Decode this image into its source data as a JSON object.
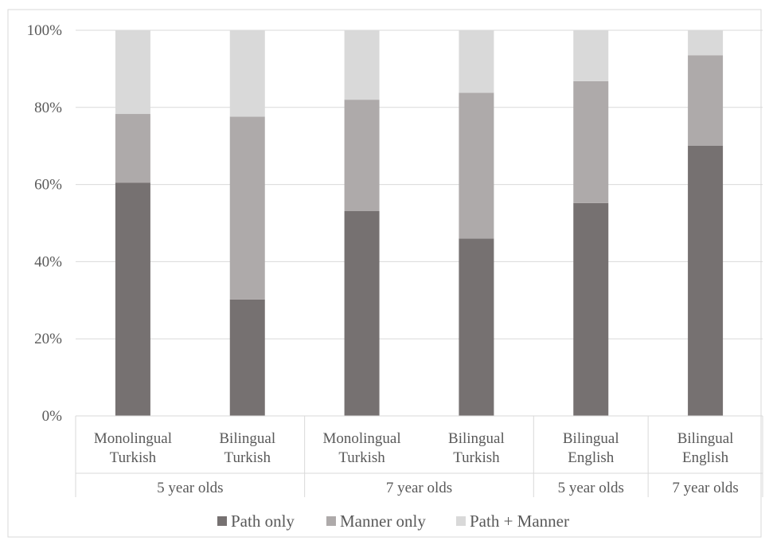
{
  "chart_data": {
    "type": "bar",
    "stacked": true,
    "percent_stacked": true,
    "categories": [
      [
        "Monolingual",
        "Turkish"
      ],
      [
        "Bilingual",
        "Turkish"
      ],
      [
        "Monolingual",
        "Turkish"
      ],
      [
        "Bilingual",
        "Turkish"
      ],
      [
        "Bilingual",
        "English"
      ],
      [
        "Bilingual",
        "English"
      ]
    ],
    "groups": [
      {
        "label": "5 year olds",
        "span": [
          0,
          1
        ]
      },
      {
        "label": "7 year olds",
        "span": [
          2,
          3
        ]
      },
      {
        "label": "5 year olds",
        "span": [
          4,
          4
        ]
      },
      {
        "label": "7 year olds",
        "span": [
          5,
          5
        ]
      }
    ],
    "series": [
      {
        "name": "Path only",
        "color": "#767171",
        "values": [
          60.5,
          30.2,
          53.1,
          46.0,
          55.2,
          70.1
        ]
      },
      {
        "name": "Manner only",
        "color": "#aeaaaa",
        "values": [
          17.8,
          47.4,
          28.9,
          37.8,
          31.6,
          23.4
        ]
      },
      {
        "name": "Path + Manner",
        "color": "#d9d9d9",
        "values": [
          21.7,
          22.4,
          18.0,
          16.2,
          13.2,
          6.5
        ]
      }
    ],
    "yticks": [
      "0%",
      "20%",
      "40%",
      "60%",
      "80%",
      "100%"
    ],
    "ylim": [
      0,
      100
    ],
    "grid": true,
    "legend": "bottom"
  }
}
